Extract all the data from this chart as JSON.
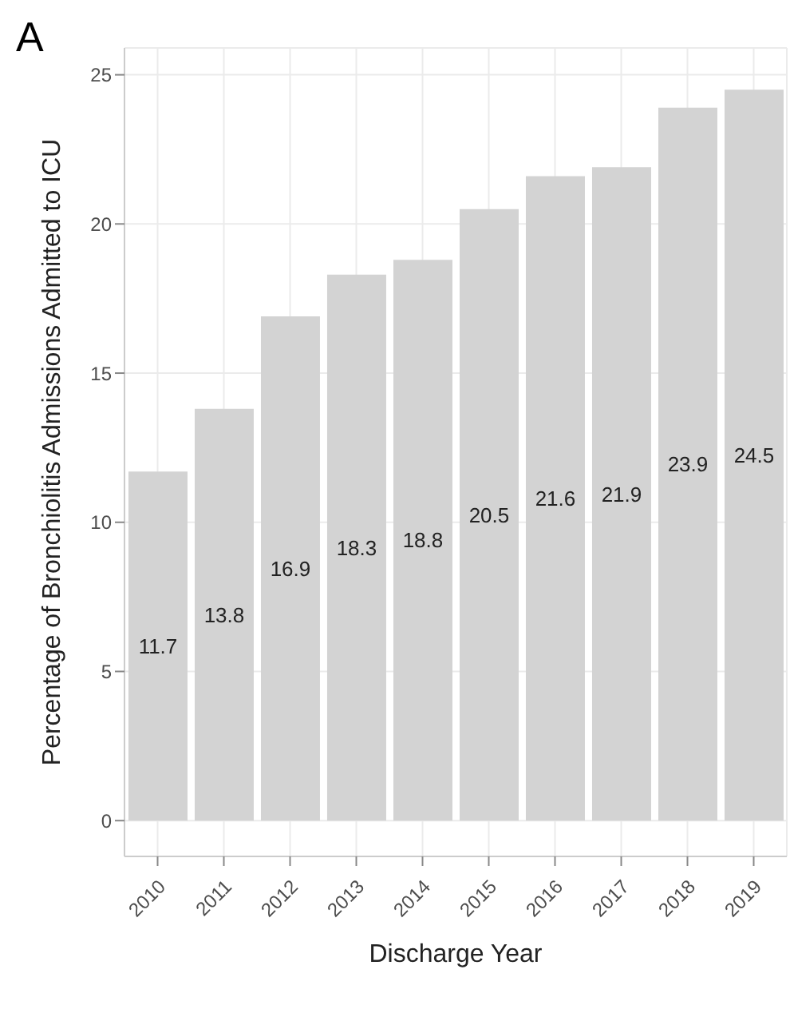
{
  "chart_data": {
    "type": "bar",
    "title": "A",
    "xlabel": "Discharge Year",
    "ylabel": "Percentage of Bronchiolitis Admissions Admitted to ICU",
    "categories": [
      "2010",
      "2011",
      "2012",
      "2013",
      "2014",
      "2015",
      "2016",
      "2017",
      "2018",
      "2019"
    ],
    "values": [
      11.7,
      13.8,
      16.9,
      18.3,
      18.8,
      20.5,
      21.6,
      21.9,
      23.9,
      24.5
    ],
    "color": "#d3d3d3",
    "ylim": [
      -1.2,
      25.9
    ],
    "yticks": [
      0,
      5,
      10,
      15,
      20,
      25
    ],
    "grid": true,
    "data_labels": true
  }
}
